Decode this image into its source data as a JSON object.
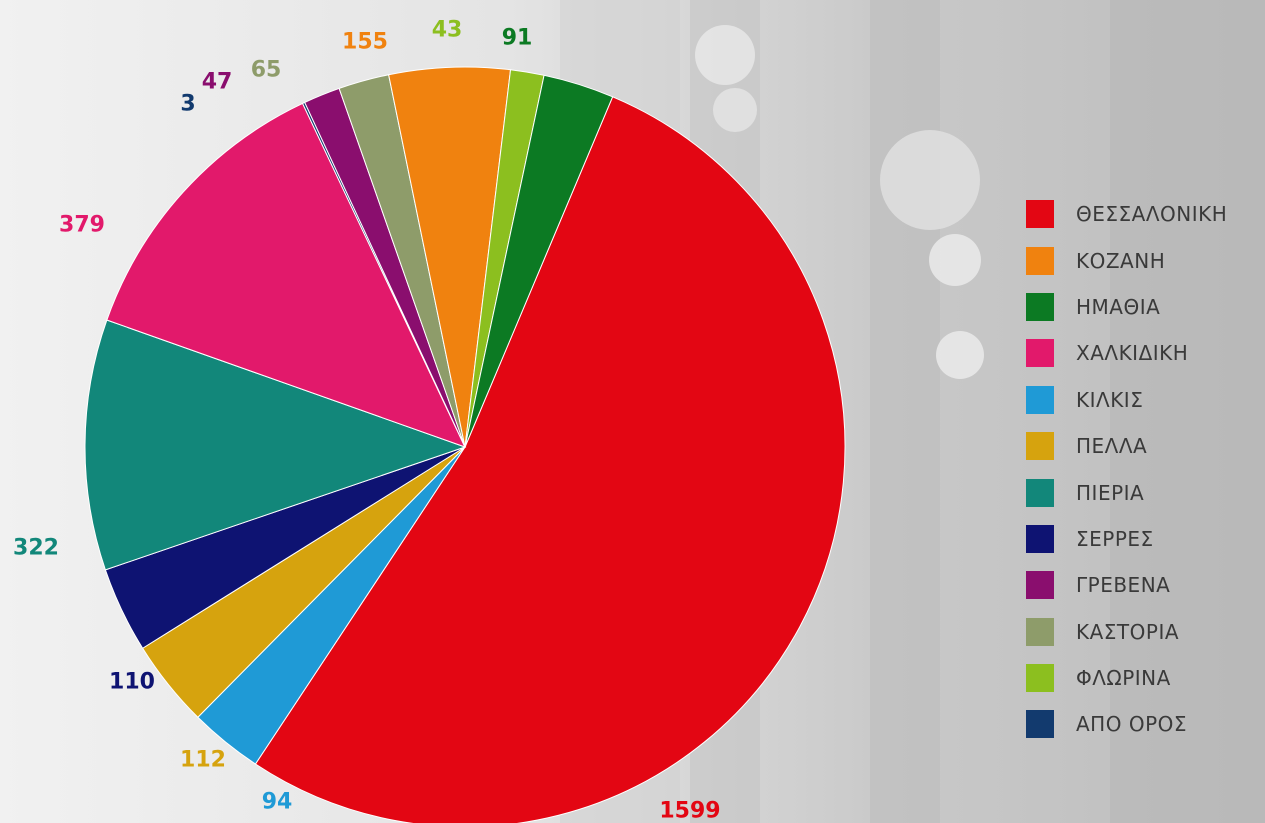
{
  "chart_data": {
    "type": "pie",
    "slices": [
      {
        "label": "ΘΕΣΣΑΛΟΝΙΚΗ",
        "value": 1599,
        "color": "#e30613"
      },
      {
        "label": "ΚΟΖΑΝΗ",
        "value": 155,
        "color": "#f0820f"
      },
      {
        "label": "ΗΜΑΘΙΑ",
        "value": 91,
        "color": "#0c7a23"
      },
      {
        "label": "ΧΑΛΚΙΔΙΚΗ",
        "value": 379,
        "color": "#e2196b"
      },
      {
        "label": "ΚΙΛΚΙΣ",
        "value": 94,
        "color": "#1f9ad6"
      },
      {
        "label": "ΠΕΛΛΑ",
        "value": 112,
        "color": "#d6a30e"
      },
      {
        "label": "ΠΙΕΡΙΑ",
        "value": 322,
        "color": "#12877a"
      },
      {
        "label": "ΣΕΡΡΕΣ",
        "value": 110,
        "color": "#0e1372"
      },
      {
        "label": "ΓΡΕΒΕΝΑ",
        "value": 47,
        "color": "#8a0e6e"
      },
      {
        "label": "ΚΑΣΤΟΡΙΑ",
        "value": 65,
        "color": "#8e9c6a"
      },
      {
        "label": "ΦΛΩΡΙΝΑ",
        "value": 43,
        "color": "#8cbf1f"
      },
      {
        "label": "ΑΠΟ ΟΡΟΣ",
        "value": 3,
        "color": "#123a6e"
      }
    ],
    "pie_order": [
      "ΘΕΣΣΑΛΟΝΙΚΗ",
      "ΚΙΛΚΙΣ",
      "ΠΕΛΛΑ",
      "ΣΕΡΡΕΣ",
      "ΠΙΕΡΙΑ",
      "ΧΑΛΚΙΔΙΚΗ",
      "ΑΠΟ ΟΡΟΣ",
      "ΓΡΕΒΕΝΑ",
      "ΚΑΣΤΟΡΙΑ",
      "ΚΟΖΑΝΗ",
      "ΦΛΩΡΙΝΑ",
      "ΗΜΑΘΙΑ"
    ],
    "legend_position": "right"
  }
}
